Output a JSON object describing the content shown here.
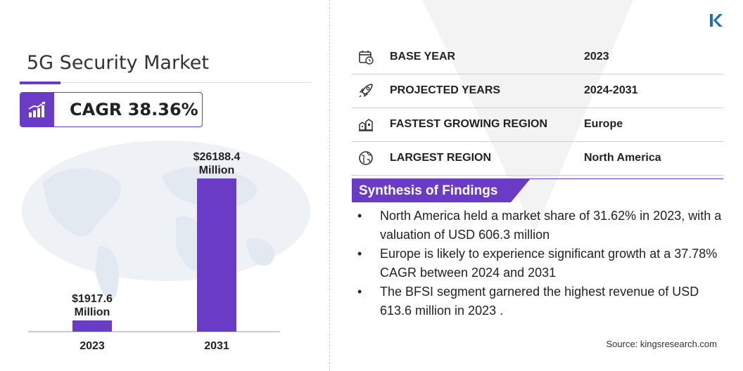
{
  "title": "5G Security Market",
  "cagr": {
    "label": "CAGR 38.36%"
  },
  "chart_data": {
    "type": "bar",
    "categories": [
      "2023",
      "2031"
    ],
    "values": [
      1917.6,
      26188.4
    ],
    "value_labels": [
      "$1917.6\nMillion",
      "$26188.4\nMillion"
    ],
    "unit": "Million",
    "bar_color": "#6a3bc4"
  },
  "info_rows": [
    {
      "icon": "calendar-icon",
      "label": "BASE YEAR",
      "value": "2023"
    },
    {
      "icon": "rocket-icon",
      "label": "PROJECTED YEARS",
      "value": "2024-2031"
    },
    {
      "icon": "region-growth-icon",
      "label": "FASTEST GROWING REGION",
      "value": "Europe"
    },
    {
      "icon": "globe-icon",
      "label": "LARGEST REGION",
      "value": "North America"
    }
  ],
  "synthesis": {
    "title": "Synthesis of Findings",
    "bullets": [
      "North America held a market share of 31.62% in 2023, with a valuation of USD 606.3 million",
      "Europe is likely to experience significant growth at a 37.78% CAGR between 2024 and 2031",
      "The BFSI segment garnered the highest revenue of USD 613.6 million in 2023 ."
    ]
  },
  "source": "Source:  kingsresearch.com",
  "colors": {
    "accent": "#6a3bc4",
    "divider": "#cfcfcf"
  }
}
